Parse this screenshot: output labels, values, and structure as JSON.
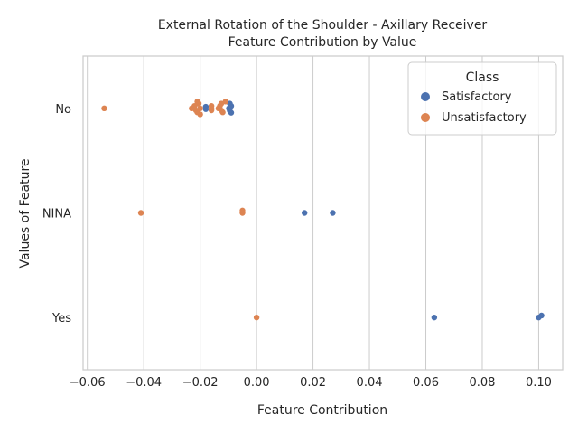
{
  "chart_data": {
    "type": "scatter",
    "title_line1": "External Rotation of the Shoulder - Axillary Receiver",
    "title_line2": "Feature Contribution by Value",
    "xlabel": "Feature Contribution",
    "ylabel": "Values of Feature",
    "xlim": [
      -0.0615,
      0.1085
    ],
    "xticks": [
      -0.06,
      -0.04,
      -0.02,
      0.0,
      0.02,
      0.04,
      0.06,
      0.08,
      0.1
    ],
    "xtick_labels": [
      "−0.06",
      "−0.04",
      "−0.02",
      "0.00",
      "0.02",
      "0.04",
      "0.06",
      "0.08",
      "0.10"
    ],
    "categories": [
      "No",
      "NINA",
      "Yes"
    ],
    "grid": "vertical",
    "legend": {
      "title": "Class",
      "placement": "top-right",
      "entries": [
        {
          "label": "Satisfactory",
          "color": "#4c72b0"
        },
        {
          "label": "Unsatisfactory",
          "color": "#dd8452"
        }
      ]
    },
    "series": [
      {
        "name": "Satisfactory",
        "color": "#4c72b0",
        "points": [
          {
            "x": -0.018,
            "category": "No",
            "jitter": 0.04
          },
          {
            "x": -0.018,
            "category": "No",
            "jitter": -0.02
          },
          {
            "x": -0.0095,
            "category": "No",
            "jitter": 0.12
          },
          {
            "x": -0.009,
            "category": "No",
            "jitter": 0.06
          },
          {
            "x": -0.0098,
            "category": "No",
            "jitter": 0.0
          },
          {
            "x": -0.0095,
            "category": "No",
            "jitter": -0.06
          },
          {
            "x": -0.009,
            "category": "No",
            "jitter": -0.11
          },
          {
            "x": 0.017,
            "category": "NINA",
            "jitter": 0.0
          },
          {
            "x": 0.027,
            "category": "NINA",
            "jitter": 0.0
          },
          {
            "x": 0.063,
            "category": "Yes",
            "jitter": 0.0
          },
          {
            "x": 0.1,
            "category": "Yes",
            "jitter": 0.0
          },
          {
            "x": 0.101,
            "category": "Yes",
            "jitter": 0.05
          }
        ]
      },
      {
        "name": "Unsatisfactory",
        "color": "#dd8452",
        "points": [
          {
            "x": -0.054,
            "category": "No",
            "jitter": 0.0
          },
          {
            "x": -0.021,
            "category": "No",
            "jitter": 0.17
          },
          {
            "x": -0.0205,
            "category": "No",
            "jitter": 0.12
          },
          {
            "x": -0.022,
            "category": "No",
            "jitter": 0.06
          },
          {
            "x": -0.023,
            "category": "No",
            "jitter": 0.0
          },
          {
            "x": -0.02,
            "category": "No",
            "jitter": 0.0
          },
          {
            "x": -0.0215,
            "category": "No",
            "jitter": -0.05
          },
          {
            "x": -0.021,
            "category": "No",
            "jitter": -0.1
          },
          {
            "x": -0.02,
            "category": "No",
            "jitter": -0.15
          },
          {
            "x": -0.016,
            "category": "No",
            "jitter": 0.06
          },
          {
            "x": -0.016,
            "category": "No",
            "jitter": 0.0
          },
          {
            "x": -0.016,
            "category": "No",
            "jitter": -0.05
          },
          {
            "x": -0.013,
            "category": "No",
            "jitter": 0.06
          },
          {
            "x": -0.0135,
            "category": "No",
            "jitter": 0.0
          },
          {
            "x": -0.0125,
            "category": "No",
            "jitter": 0.12
          },
          {
            "x": -0.011,
            "category": "No",
            "jitter": 0.17
          },
          {
            "x": -0.0125,
            "category": "No",
            "jitter": -0.05
          },
          {
            "x": -0.012,
            "category": "No",
            "jitter": -0.1
          },
          {
            "x": -0.041,
            "category": "NINA",
            "jitter": 0.0
          },
          {
            "x": -0.005,
            "category": "NINA",
            "jitter": 0.06
          },
          {
            "x": -0.005,
            "category": "NINA",
            "jitter": 0.0
          },
          {
            "x": 0.0,
            "category": "Yes",
            "jitter": 0.0
          }
        ]
      }
    ]
  }
}
